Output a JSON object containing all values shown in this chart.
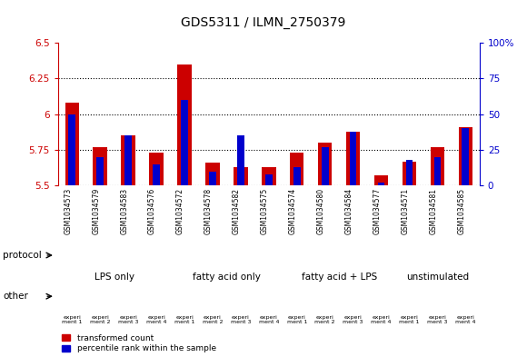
{
  "title": "GDS5311 / ILMN_2750379",
  "samples": [
    "GSM1034573",
    "GSM1034579",
    "GSM1034583",
    "GSM1034576",
    "GSM1034572",
    "GSM1034578",
    "GSM1034582",
    "GSM1034575",
    "GSM1034574",
    "GSM1034580",
    "GSM1034584",
    "GSM1034577",
    "GSM1034571",
    "GSM1034581",
    "GSM1034585"
  ],
  "transformed_count": [
    6.08,
    5.77,
    5.85,
    5.73,
    6.35,
    5.66,
    5.63,
    5.63,
    5.73,
    5.8,
    5.88,
    5.57,
    5.67,
    5.77,
    5.91
  ],
  "percentile_rank": [
    50,
    20,
    35,
    15,
    60,
    10,
    35,
    8,
    13,
    27,
    38,
    2,
    18,
    20,
    40
  ],
  "ylim_left": [
    5.5,
    6.5
  ],
  "ylim_right": [
    0,
    100
  ],
  "yticks_left": [
    5.5,
    5.75,
    6.0,
    6.25,
    6.5
  ],
  "yticks_right": [
    0,
    25,
    50,
    75,
    100
  ],
  "ytick_labels_left": [
    "5.5",
    "5.75",
    "6",
    "6.25",
    "6.5"
  ],
  "ytick_labels_right": [
    "0",
    "25",
    "50",
    "75",
    "100%"
  ],
  "bar_color_red": "#cc0000",
  "bar_color_blue": "#0000cc",
  "protocol_groups": [
    {
      "label": "LPS only",
      "start": 0,
      "end": 3,
      "color": "#ccffcc"
    },
    {
      "label": "fatty acid only",
      "start": 4,
      "end": 7,
      "color": "#88ee88"
    },
    {
      "label": "fatty acid + LPS",
      "start": 8,
      "end": 11,
      "color": "#44dd44"
    },
    {
      "label": "unstimulated",
      "start": 12,
      "end": 14,
      "color": "#88ee88"
    }
  ],
  "other_colors": [
    "#ddddff",
    "#ddddff",
    "#ddddff",
    "#ff66ff",
    "#ddddff",
    "#ddddff",
    "#ddddff",
    "#ff66ff",
    "#ddddff",
    "#ddddff",
    "#ddddff",
    "#ff66ff",
    "#ddddff",
    "#ddddff",
    "#ff66ff"
  ],
  "other_labels": [
    "experi\nment 1",
    "experi\nment 2",
    "experi\nment 3",
    "experi\nment 4",
    "experi\nment 1",
    "experi\nment 2",
    "experi\nment 3",
    "experi\nment 4",
    "experi\nment 1",
    "experi\nment 2",
    "experi\nment 3",
    "experi\nment 4",
    "experi\nment 1",
    "experi\nment 3",
    "experi\nment 4"
  ],
  "left_axis_color": "#cc0000",
  "right_axis_color": "#0000cc",
  "background_color": "#ffffff",
  "sample_bg_color": "#cccccc",
  "plot_bg_color": "#ffffff"
}
